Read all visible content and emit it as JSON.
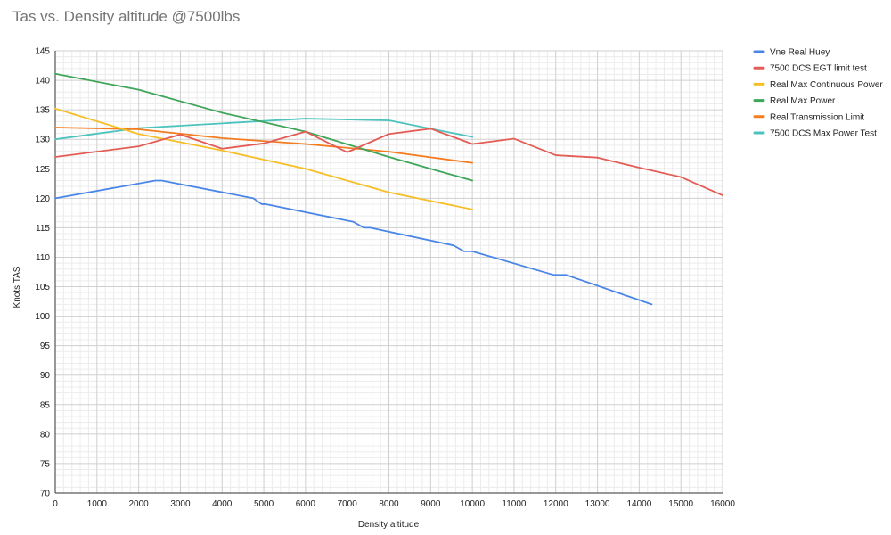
{
  "chart_data": {
    "type": "line",
    "title": "Tas vs. Density altitude @7500lbs",
    "xlabel": "Density altitude",
    "ylabel": "Knots TAS",
    "xlim": [
      0,
      16000
    ],
    "ylim": [
      70,
      145
    ],
    "x_ticks": [
      0,
      1000,
      2000,
      3000,
      4000,
      5000,
      6000,
      7000,
      8000,
      9000,
      10000,
      11000,
      12000,
      13000,
      14000,
      15000,
      16000
    ],
    "y_ticks": [
      70,
      75,
      80,
      85,
      90,
      95,
      100,
      105,
      110,
      115,
      120,
      125,
      130,
      135,
      140,
      145
    ],
    "grid": true,
    "legend_position": "right",
    "series": [
      {
        "name": "Vne Real Huey",
        "color": "#4a86e8",
        "points": [
          [
            0,
            120
          ],
          [
            2400,
            123
          ],
          [
            2550,
            123
          ],
          [
            4750,
            120
          ],
          [
            4950,
            119
          ],
          [
            5050,
            119
          ],
          [
            7150,
            116
          ],
          [
            7400,
            115
          ],
          [
            7550,
            115
          ],
          [
            9550,
            112
          ],
          [
            9800,
            111
          ],
          [
            10000,
            111
          ],
          [
            11950,
            107
          ],
          [
            12250,
            107
          ],
          [
            14300,
            102
          ]
        ]
      },
      {
        "name": "7500 DCS EGT limit test",
        "color": "#e35d56",
        "points": [
          [
            0,
            127
          ],
          [
            2000,
            128.8
          ],
          [
            3000,
            130.8
          ],
          [
            4000,
            128.4
          ],
          [
            5000,
            129.3
          ],
          [
            6000,
            131.3
          ],
          [
            7000,
            127.8
          ],
          [
            8000,
            130.9
          ],
          [
            9000,
            131.8
          ],
          [
            10000,
            129.2
          ],
          [
            11000,
            130.1
          ],
          [
            12000,
            127.3
          ],
          [
            13000,
            126.9
          ],
          [
            14000,
            125.2
          ],
          [
            15000,
            123.6
          ],
          [
            16000,
            120.5
          ]
        ]
      },
      {
        "name": "Real Max Continuous Power",
        "color": "#f6bf26",
        "points": [
          [
            0,
            135.2
          ],
          [
            2000,
            130.9
          ],
          [
            4000,
            128.1
          ],
          [
            6000,
            125
          ],
          [
            8000,
            121
          ],
          [
            10000,
            118.1
          ]
        ]
      },
      {
        "name": "Real Max Power",
        "color": "#3fa659",
        "points": [
          [
            0,
            141.1
          ],
          [
            2000,
            138.4
          ],
          [
            4000,
            134.5
          ],
          [
            6000,
            131.3
          ],
          [
            8000,
            127
          ],
          [
            10000,
            123
          ]
        ]
      },
      {
        "name": "Real Transmission Limit",
        "color": "#f57c1f",
        "points": [
          [
            0,
            132
          ],
          [
            2000,
            131.7
          ],
          [
            4000,
            130.2
          ],
          [
            6000,
            129.2
          ],
          [
            8000,
            127.9
          ],
          [
            10000,
            126
          ]
        ]
      },
      {
        "name": "7500 DCS Max Power Test",
        "color": "#4dc3be",
        "points": [
          [
            0,
            130
          ],
          [
            2000,
            131.9
          ],
          [
            4000,
            132.7
          ],
          [
            6000,
            133.5
          ],
          [
            8000,
            133.2
          ],
          [
            10000,
            130.4
          ]
        ]
      }
    ]
  }
}
